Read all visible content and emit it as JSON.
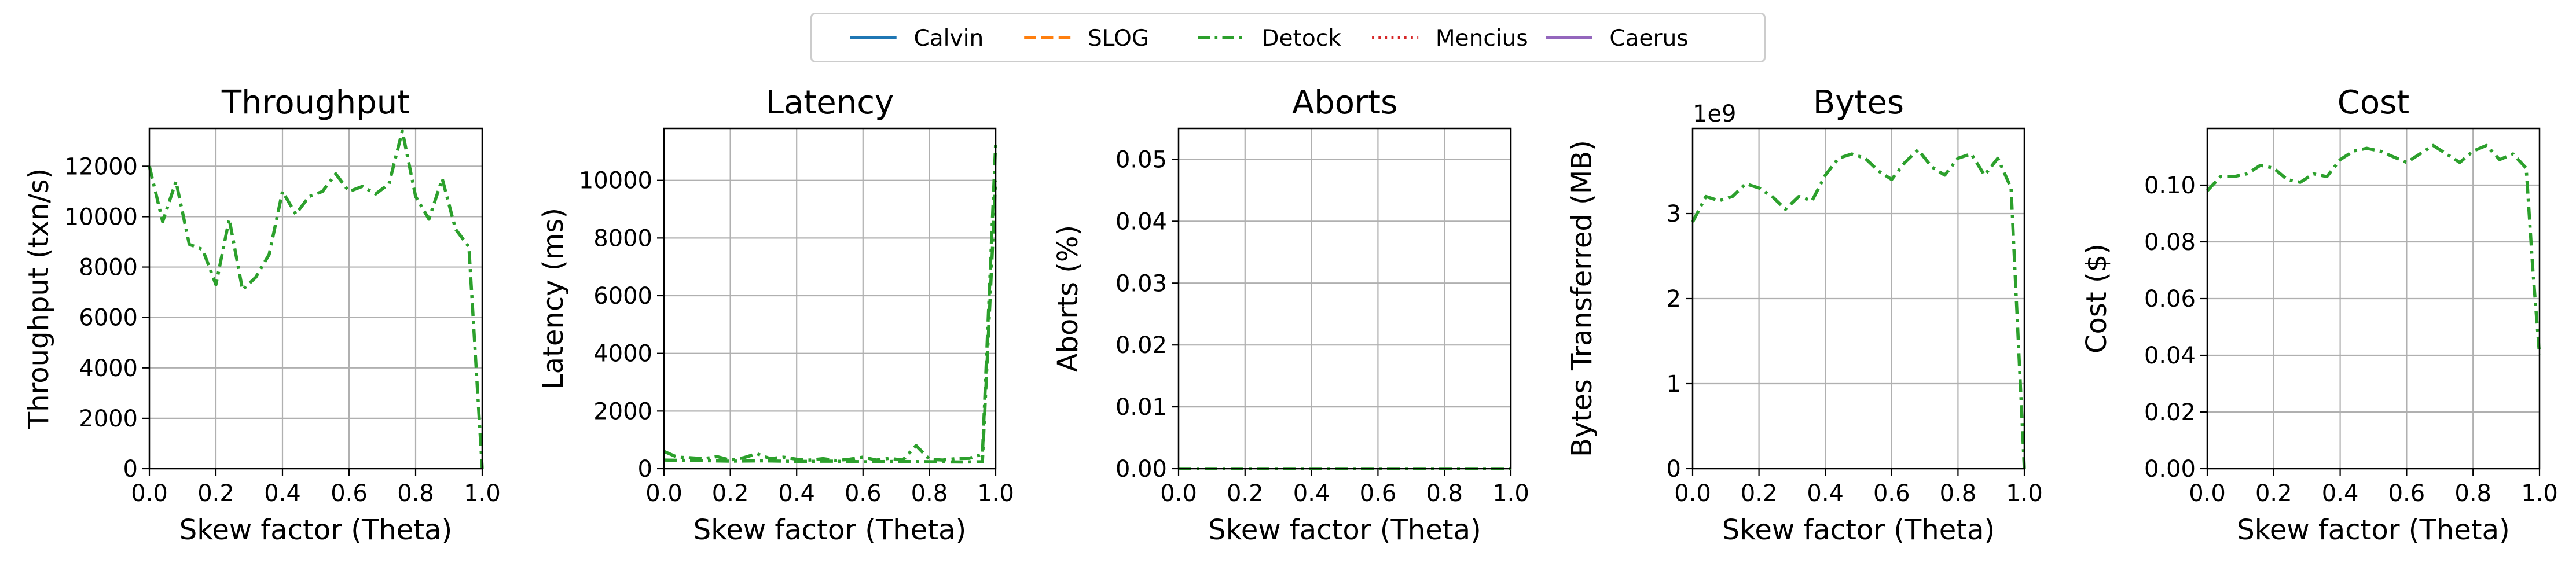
{
  "legend": {
    "items": [
      {
        "name": "Calvin",
        "color": "#1f77b4",
        "dash": "solid"
      },
      {
        "name": "SLOG",
        "color": "#ff7f0e",
        "dash": "dashed"
      },
      {
        "name": "Detock",
        "color": "#2ca02c",
        "dash": "dashdot"
      },
      {
        "name": "Mencius",
        "color": "#d62728",
        "dash": "dotted"
      },
      {
        "name": "Caerus",
        "color": "#9467bd",
        "dash": "solid"
      }
    ]
  },
  "chart_data": [
    {
      "type": "line",
      "title": "Throughput",
      "xlabel": "Skew factor (Theta)",
      "ylabel": "Throughput (txn/s)",
      "xlim": [
        0,
        1
      ],
      "ylim": [
        0,
        13500
      ],
      "xticks": [
        "0.0",
        "0.2",
        "0.4",
        "0.6",
        "0.8",
        "1.0"
      ],
      "yticks": [
        0,
        2000,
        4000,
        6000,
        8000,
        10000,
        12000
      ],
      "grid": true,
      "series": [
        {
          "name": "Detock",
          "x": [
            0,
            0.04,
            0.08,
            0.12,
            0.16,
            0.2,
            0.24,
            0.28,
            0.32,
            0.36,
            0.4,
            0.44,
            0.48,
            0.52,
            0.56,
            0.6,
            0.64,
            0.68,
            0.72,
            0.76,
            0.8,
            0.84,
            0.88,
            0.92,
            0.96,
            1.0
          ],
          "y": [
            12000,
            9800,
            11400,
            8900,
            8700,
            7300,
            9900,
            7100,
            7600,
            8500,
            11000,
            10100,
            10800,
            11000,
            11700,
            11000,
            11200,
            10900,
            11300,
            13400,
            10800,
            9900,
            11500,
            9500,
            8800,
            0
          ]
        }
      ]
    },
    {
      "type": "line",
      "title": "Latency",
      "xlabel": "Skew factor (Theta)",
      "ylabel": "Latency (ms)",
      "xlim": [
        0,
        1
      ],
      "ylim": [
        0,
        11800
      ],
      "xticks": [
        "0.0",
        "0.2",
        "0.4",
        "0.6",
        "0.8",
        "1.0"
      ],
      "yticks": [
        0,
        2000,
        4000,
        6000,
        8000,
        10000
      ],
      "grid": true,
      "series": [
        {
          "name": "Detock",
          "x": [
            0,
            0.04,
            0.08,
            0.12,
            0.16,
            0.2,
            0.24,
            0.28,
            0.32,
            0.36,
            0.4,
            0.44,
            0.48,
            0.52,
            0.56,
            0.6,
            0.64,
            0.68,
            0.72,
            0.76,
            0.8,
            0.84,
            0.88,
            0.92,
            0.96,
            1.0
          ],
          "y": [
            600,
            400,
            380,
            350,
            420,
            300,
            380,
            520,
            350,
            400,
            330,
            300,
            350,
            280,
            330,
            400,
            300,
            360,
            300,
            800,
            330,
            300,
            350,
            360,
            500,
            11300
          ]
        },
        {
          "name": "Detock",
          "x": [
            0,
            0.1,
            0.2,
            0.3,
            0.4,
            0.5,
            0.6,
            0.7,
            0.8,
            0.9,
            0.96,
            1.0
          ],
          "y": [
            300,
            280,
            260,
            270,
            250,
            260,
            240,
            250,
            240,
            230,
            240,
            10000
          ]
        }
      ]
    },
    {
      "type": "line",
      "title": "Aborts",
      "xlabel": "Skew factor (Theta)",
      "ylabel": "Aborts (%)",
      "xlim": [
        0,
        1
      ],
      "ylim": [
        0,
        0.055
      ],
      "xticks": [
        "0.0",
        "0.2",
        "0.4",
        "0.6",
        "0.8",
        "1.0"
      ],
      "yticks": [
        "0.00",
        "0.01",
        "0.02",
        "0.03",
        "0.04",
        "0.05"
      ],
      "grid": true,
      "series": [
        {
          "name": "Detock",
          "x": [
            0,
            0.1,
            0.2,
            0.3,
            0.4,
            0.5,
            0.6,
            0.7,
            0.8,
            0.9,
            1.0
          ],
          "y": [
            0,
            0,
            0,
            0,
            0,
            0,
            0,
            0,
            0,
            0,
            0
          ]
        }
      ]
    },
    {
      "type": "line",
      "title": "Bytes",
      "xlabel": "Skew factor (Theta)",
      "ylabel": "Bytes Transferred (MB)",
      "offset_text": "1e9",
      "xlim": [
        0,
        1
      ],
      "ylim": [
        0,
        4.0
      ],
      "xticks": [
        "0.0",
        "0.2",
        "0.4",
        "0.6",
        "0.8",
        "1.0"
      ],
      "yticks": [
        0,
        1,
        2,
        3
      ],
      "grid": true,
      "series": [
        {
          "name": "Detock",
          "x": [
            0,
            0.04,
            0.08,
            0.12,
            0.16,
            0.2,
            0.24,
            0.28,
            0.32,
            0.36,
            0.4,
            0.44,
            0.48,
            0.52,
            0.56,
            0.6,
            0.64,
            0.68,
            0.72,
            0.76,
            0.8,
            0.84,
            0.88,
            0.92,
            0.96,
            1.0
          ],
          "y": [
            2.9,
            3.2,
            3.15,
            3.2,
            3.35,
            3.3,
            3.2,
            3.05,
            3.2,
            3.15,
            3.45,
            3.65,
            3.7,
            3.65,
            3.5,
            3.4,
            3.6,
            3.75,
            3.55,
            3.45,
            3.65,
            3.7,
            3.45,
            3.65,
            3.3,
            0
          ]
        }
      ]
    },
    {
      "type": "line",
      "title": "Cost",
      "xlabel": "Skew factor (Theta)",
      "ylabel": "Cost ($)",
      "xlim": [
        0,
        1
      ],
      "ylim": [
        0,
        0.12
      ],
      "xticks": [
        "0.0",
        "0.2",
        "0.4",
        "0.6",
        "0.8",
        "1.0"
      ],
      "yticks": [
        "0.00",
        "0.02",
        "0.04",
        "0.06",
        "0.08",
        "0.10"
      ],
      "grid": true,
      "series": [
        {
          "name": "Detock",
          "x": [
            0,
            0.04,
            0.08,
            0.12,
            0.16,
            0.2,
            0.24,
            0.28,
            0.32,
            0.36,
            0.4,
            0.44,
            0.48,
            0.52,
            0.56,
            0.6,
            0.64,
            0.68,
            0.72,
            0.76,
            0.8,
            0.84,
            0.88,
            0.92,
            0.96,
            0.98,
            1.0
          ],
          "y": [
            0.098,
            0.103,
            0.103,
            0.104,
            0.107,
            0.106,
            0.102,
            0.101,
            0.104,
            0.103,
            0.109,
            0.112,
            0.113,
            0.112,
            0.11,
            0.108,
            0.111,
            0.114,
            0.111,
            0.108,
            0.112,
            0.114,
            0.109,
            0.111,
            0.106,
            0.07,
            0.04
          ]
        }
      ]
    }
  ]
}
